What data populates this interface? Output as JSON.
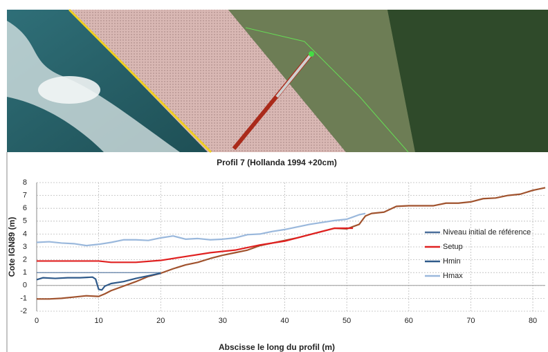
{
  "chart_data": {
    "type": "line",
    "title": "Profil 7 (Hollanda 1994 +20cm)",
    "x_label": "Abscisse le long du profil (m)",
    "y_label": "Cote IGN89 (m)",
    "xlim": [
      0,
      82
    ],
    "xticks": [
      0,
      10,
      20,
      30,
      40,
      50,
      60,
      70,
      80
    ],
    "ylim": [
      -2,
      8
    ],
    "yticks": [
      -2,
      -1,
      0,
      1,
      2,
      3,
      4,
      5,
      6,
      7,
      8
    ],
    "grid": true,
    "legend": "right",
    "series": [
      {
        "color": "#a0522d",
        "x": [
          0,
          2,
          4,
          6,
          8,
          10,
          11,
          12,
          14,
          16,
          18,
          20,
          22,
          24,
          26,
          28,
          30,
          32,
          34,
          36,
          38,
          40,
          42,
          44,
          46,
          48,
          50,
          52,
          53,
          54,
          56,
          58,
          60,
          62,
          64,
          66,
          68,
          70,
          72,
          74,
          76,
          78,
          80,
          82
        ],
        "values": [
          -1.05,
          -1.05,
          -1.0,
          -0.9,
          -0.8,
          -0.85,
          -0.65,
          -0.4,
          -0.05,
          0.3,
          0.7,
          0.95,
          1.3,
          1.6,
          1.8,
          2.1,
          2.35,
          2.55,
          2.75,
          3.1,
          3.3,
          3.5,
          3.7,
          3.95,
          4.2,
          4.45,
          4.4,
          4.75,
          5.4,
          5.6,
          5.7,
          6.15,
          6.2,
          6.2,
          6.2,
          6.4,
          6.4,
          6.5,
          6.75,
          6.8,
          7.0,
          7.1,
          7.4,
          7.6
        ]
      },
      {
        "name": "Niveau initial de référence",
        "color": "#4a6e9a",
        "x": [
          0,
          20
        ],
        "values": [
          1,
          1
        ]
      },
      {
        "name": "Setup",
        "color": "#e02020",
        "x": [
          0,
          10,
          12,
          16,
          20,
          24,
          28,
          32,
          36,
          40,
          44,
          48,
          50,
          51
        ],
        "values": [
          1.9,
          1.9,
          1.8,
          1.8,
          1.95,
          2.25,
          2.55,
          2.75,
          3.15,
          3.45,
          3.95,
          4.45,
          4.45,
          4.45
        ]
      },
      {
        "name": "Hmin",
        "color": "#2f5a8a",
        "x": [
          0,
          1,
          3,
          5,
          7,
          9,
          9.5,
          10,
          10.5,
          11,
          12,
          14,
          16,
          18,
          20
        ],
        "values": [
          0.45,
          0.6,
          0.55,
          0.6,
          0.6,
          0.65,
          0.5,
          -0.3,
          -0.35,
          -0.05,
          0.15,
          0.3,
          0.55,
          0.75,
          0.95
        ]
      },
      {
        "name": "Hmax",
        "color": "#9ab8dc",
        "x": [
          0,
          2,
          4,
          6,
          8,
          10,
          12,
          14,
          16,
          18,
          20,
          22,
          24,
          26,
          28,
          30,
          32,
          34,
          36,
          38,
          40,
          42,
          44,
          46,
          48,
          50,
          52,
          53
        ],
        "values": [
          3.35,
          3.4,
          3.3,
          3.25,
          3.1,
          3.2,
          3.35,
          3.55,
          3.55,
          3.5,
          3.7,
          3.85,
          3.6,
          3.65,
          3.55,
          3.6,
          3.7,
          3.95,
          4.0,
          4.2,
          4.35,
          4.55,
          4.75,
          4.9,
          5.05,
          5.15,
          5.5,
          5.6
        ]
      }
    ]
  }
}
